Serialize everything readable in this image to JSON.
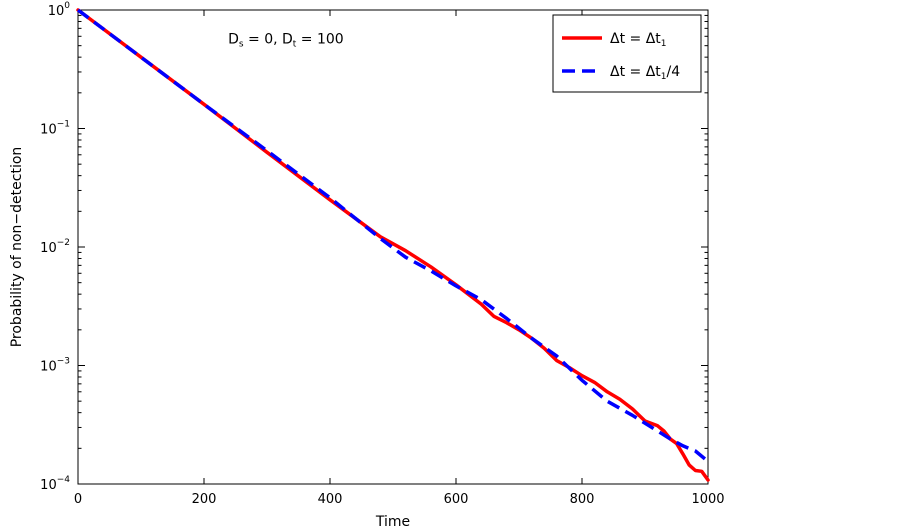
{
  "chart_data": {
    "type": "line",
    "xlabel": "Time",
    "ylabel": "Probability of non−detection",
    "xlim": [
      0,
      1000
    ],
    "ylim": [
      0.0001,
      1
    ],
    "yscale": "log",
    "grid": false,
    "legend_position": "top-right",
    "x_ticks": [
      0,
      200,
      400,
      600,
      800,
      1000
    ],
    "y_ticks": [
      {
        "value": 1,
        "base": "10",
        "exp": "0"
      },
      {
        "value": 0.1,
        "base": "10",
        "exp": "−1"
      },
      {
        "value": 0.01,
        "base": "10",
        "exp": "−2"
      },
      {
        "value": 0.001,
        "base": "10",
        "exp": "−3"
      },
      {
        "value": 0.0001,
        "base": "10",
        "exp": "−4"
      }
    ],
    "annotation": {
      "parts": [
        {
          "text": "D",
          "style": "normal"
        },
        {
          "text": "s",
          "style": "sub"
        },
        {
          "text": " = 0,  D",
          "style": "normal"
        },
        {
          "text": "t",
          "style": "sub"
        },
        {
          "text": " = 100",
          "style": "normal"
        }
      ],
      "x": 330,
      "y": 0.52
    },
    "series": [
      {
        "legend_parts": [
          {
            "text": "Δt = Δt",
            "style": "normal"
          },
          {
            "text": "1",
            "style": "sub"
          }
        ],
        "color": "#ff0000",
        "dash": "solid",
        "x": [
          0,
          100,
          200,
          300,
          400,
          480,
          520,
          560,
          600,
          640,
          660,
          680,
          700,
          720,
          740,
          760,
          780,
          800,
          820,
          840,
          860,
          880,
          900,
          920,
          930,
          940,
          950,
          960,
          970,
          980,
          990,
          1000
        ],
        "y": [
          1,
          0.4,
          0.16,
          0.063,
          0.025,
          0.0122,
          0.0093,
          0.0068,
          0.0048,
          0.0033,
          0.0026,
          0.0023,
          0.002,
          0.0017,
          0.0014,
          0.0011,
          0.00096,
          0.00082,
          0.00072,
          0.0006,
          0.00052,
          0.00043,
          0.00034,
          0.00031,
          0.00028,
          0.00024,
          0.00022,
          0.00018,
          0.000145,
          0.00013,
          0.000128,
          0.000108
        ]
      },
      {
        "legend_parts": [
          {
            "text": "Δt = Δt",
            "style": "normal"
          },
          {
            "text": "1",
            "style": "sub"
          },
          {
            "text": "/4",
            "style": "normal"
          }
        ],
        "color": "#0000ff",
        "dash": "dashed",
        "x": [
          0,
          100,
          200,
          300,
          400,
          480,
          520,
          560,
          600,
          640,
          680,
          720,
          760,
          800,
          840,
          880,
          920,
          940,
          960,
          980,
          1000
        ],
        "y": [
          1,
          0.4,
          0.16,
          0.065,
          0.026,
          0.0118,
          0.0082,
          0.0063,
          0.0047,
          0.0036,
          0.0025,
          0.0017,
          0.0012,
          0.00075,
          0.0005,
          0.00038,
          0.00028,
          0.00024,
          0.00021,
          0.00019,
          0.000155
        ]
      }
    ]
  }
}
